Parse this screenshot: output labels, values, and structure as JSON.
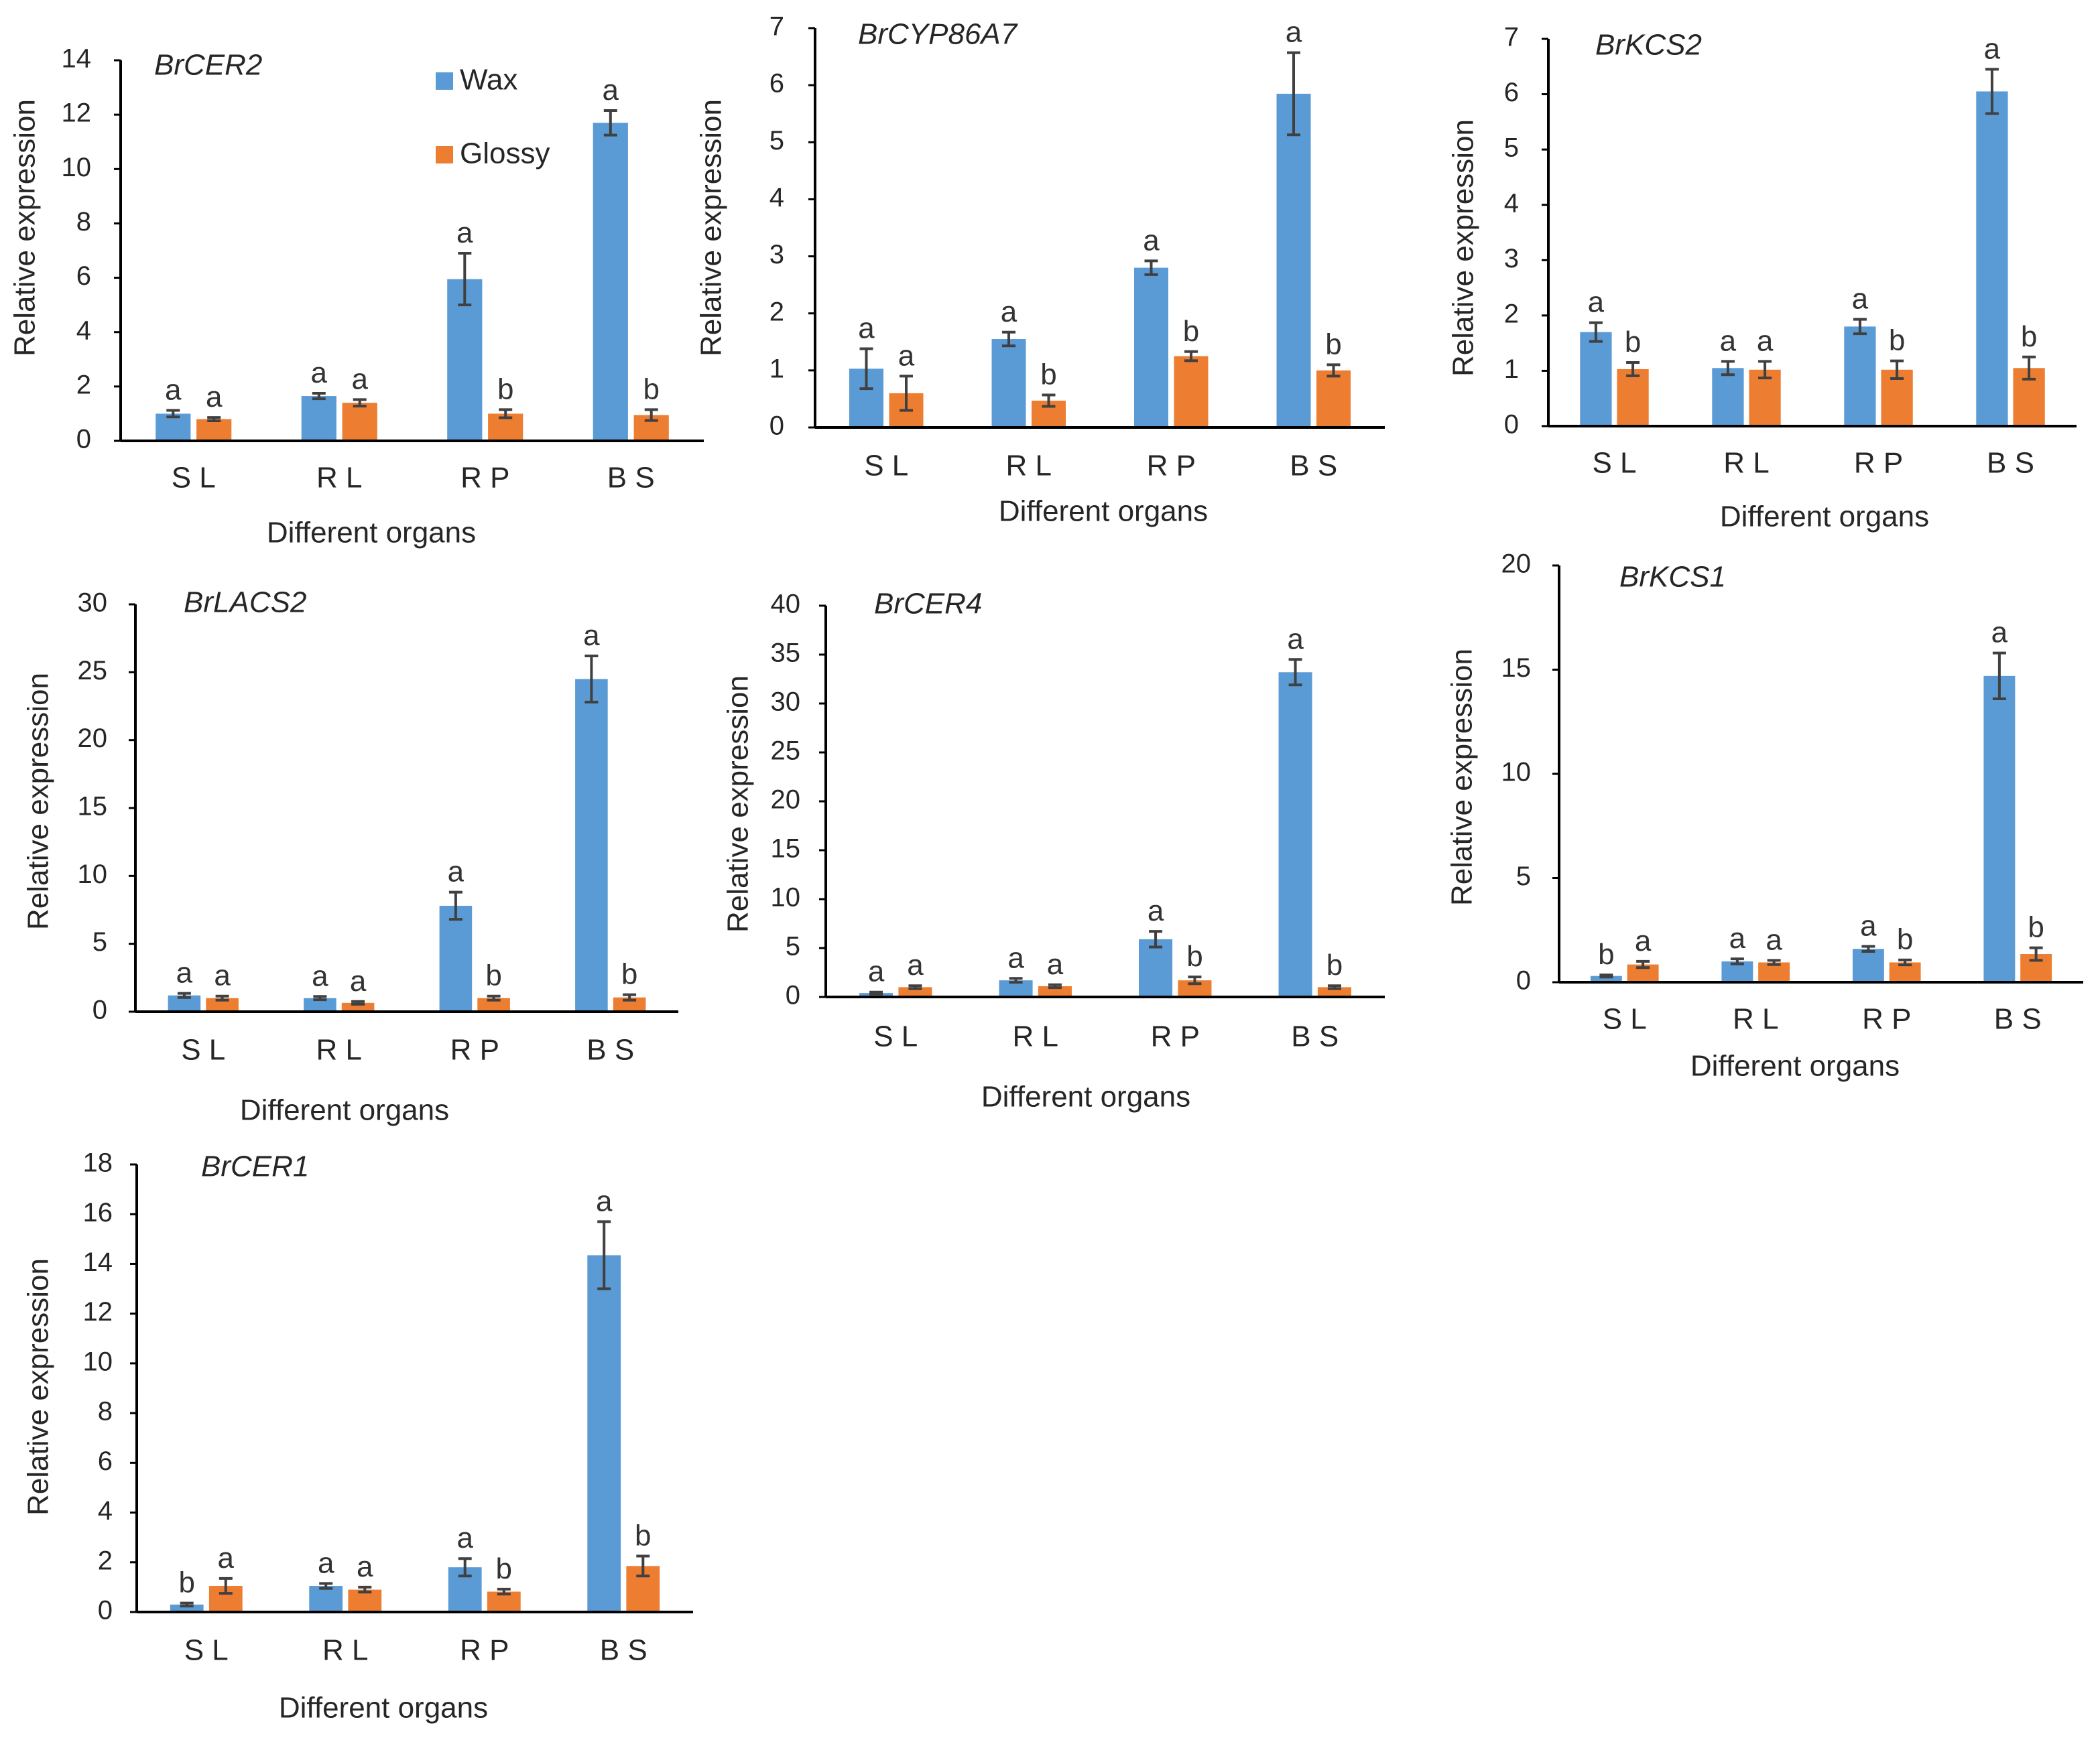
{
  "chart_data": [
    {
      "type": "bar",
      "title": "BrCER2",
      "ylabel": "Relative expression",
      "xlabel": "Different organs",
      "categories": [
        "S L",
        "R L",
        "R P",
        "B S"
      ],
      "ylim": [
        0,
        14
      ],
      "yticks": [
        0,
        2,
        4,
        6,
        8,
        10,
        12,
        14
      ],
      "show_legend": true,
      "series": [
        {
          "name": "Wax",
          "color": "#5B9BD5",
          "values": [
            1.0,
            1.65,
            5.95,
            11.7
          ],
          "errors": [
            0.12,
            0.1,
            0.95,
            0.45
          ],
          "letters": [
            "a",
            "a",
            "a",
            "a"
          ]
        },
        {
          "name": "Glossy",
          "color": "#ED7D31",
          "values": [
            0.8,
            1.4,
            1.0,
            0.95
          ],
          "errors": [
            0.06,
            0.12,
            0.15,
            0.2
          ],
          "letters": [
            "a",
            "a",
            "b",
            "b"
          ]
        }
      ]
    },
    {
      "type": "bar",
      "title": "BrCYP86A7",
      "ylabel": "Relative expression",
      "xlabel": "Different organs",
      "categories": [
        "S L",
        "R L",
        "R P",
        "B S"
      ],
      "ylim": [
        0,
        7
      ],
      "yticks": [
        0,
        1,
        2,
        3,
        4,
        5,
        6,
        7
      ],
      "show_legend": false,
      "series": [
        {
          "name": "Wax",
          "color": "#5B9BD5",
          "values": [
            1.03,
            1.55,
            2.8,
            5.85
          ],
          "errors": [
            0.35,
            0.12,
            0.12,
            0.72
          ],
          "letters": [
            "a",
            "a",
            "a",
            "a"
          ]
        },
        {
          "name": "Glossy",
          "color": "#ED7D31",
          "values": [
            0.6,
            0.47,
            1.25,
            1.0
          ],
          "errors": [
            0.3,
            0.1,
            0.08,
            0.1
          ],
          "letters": [
            "a",
            "b",
            "b",
            "b"
          ]
        }
      ]
    },
    {
      "type": "bar",
      "title": "BrKCS2",
      "ylabel": "Relative expression",
      "xlabel": "Different organs",
      "categories": [
        "S L",
        "R L",
        "R P",
        "B S"
      ],
      "ylim": [
        0,
        7
      ],
      "yticks": [
        0,
        1,
        2,
        3,
        4,
        5,
        6,
        7
      ],
      "show_legend": false,
      "series": [
        {
          "name": "Wax",
          "color": "#5B9BD5",
          "values": [
            1.7,
            1.05,
            1.8,
            6.05
          ],
          "errors": [
            0.17,
            0.12,
            0.13,
            0.4
          ],
          "letters": [
            "a",
            "a",
            "a",
            "a"
          ]
        },
        {
          "name": "Glossy",
          "color": "#ED7D31",
          "values": [
            1.03,
            1.02,
            1.02,
            1.05
          ],
          "errors": [
            0.12,
            0.15,
            0.16,
            0.2
          ],
          "letters": [
            "b",
            "a",
            "b",
            "b"
          ]
        }
      ]
    },
    {
      "type": "bar",
      "title": "BrLACS2",
      "ylabel": "Relative expression",
      "xlabel": "Different organs",
      "categories": [
        "S L",
        "R L",
        "R P",
        "B S"
      ],
      "ylim": [
        0,
        30
      ],
      "yticks": [
        0,
        5,
        10,
        15,
        20,
        25,
        30
      ],
      "show_legend": false,
      "series": [
        {
          "name": "Wax",
          "color": "#5B9BD5",
          "values": [
            1.2,
            1.0,
            7.8,
            24.5
          ],
          "errors": [
            0.15,
            0.12,
            1.0,
            1.7
          ],
          "letters": [
            "a",
            "a",
            "a",
            "a"
          ]
        },
        {
          "name": "Glossy",
          "color": "#ED7D31",
          "values": [
            1.0,
            0.65,
            1.0,
            1.05
          ],
          "errors": [
            0.15,
            0.1,
            0.15,
            0.2
          ],
          "letters": [
            "a",
            "a",
            "b",
            "b"
          ]
        }
      ]
    },
    {
      "type": "bar",
      "title": "BrCER4",
      "ylabel": "Relative expression",
      "xlabel": "Different organs",
      "categories": [
        "S L",
        "R L",
        "R P",
        "B S"
      ],
      "ylim": [
        0,
        40
      ],
      "yticks": [
        0,
        5,
        10,
        15,
        20,
        25,
        30,
        35,
        40
      ],
      "show_legend": false,
      "series": [
        {
          "name": "Wax",
          "color": "#5B9BD5",
          "values": [
            0.4,
            1.7,
            5.9,
            33.2
          ],
          "errors": [
            0.1,
            0.2,
            0.8,
            1.3
          ],
          "letters": [
            "a",
            "a",
            "a",
            "a"
          ]
        },
        {
          "name": "Glossy",
          "color": "#ED7D31",
          "values": [
            1.0,
            1.1,
            1.7,
            1.0
          ],
          "errors": [
            0.15,
            0.15,
            0.35,
            0.15
          ],
          "letters": [
            "a",
            "a",
            "b",
            "b"
          ]
        }
      ]
    },
    {
      "type": "bar",
      "title": "BrKCS1",
      "ylabel": "Relative expression",
      "xlabel": "Different organs",
      "categories": [
        "S L",
        "R L",
        "R P",
        "B S"
      ],
      "ylim": [
        0,
        20
      ],
      "yticks": [
        0,
        5,
        10,
        15,
        20
      ],
      "show_legend": false,
      "series": [
        {
          "name": "Wax",
          "color": "#5B9BD5",
          "values": [
            0.3,
            1.0,
            1.6,
            14.7
          ],
          "errors": [
            0.05,
            0.12,
            0.12,
            1.1
          ],
          "letters": [
            "b",
            "a",
            "a",
            "a"
          ]
        },
        {
          "name": "Glossy",
          "color": "#ED7D31",
          "values": [
            0.85,
            0.95,
            0.95,
            1.35
          ],
          "errors": [
            0.15,
            0.1,
            0.12,
            0.3
          ],
          "letters": [
            "a",
            "a",
            "b",
            "b"
          ]
        }
      ]
    },
    {
      "type": "bar",
      "title": "BrCER1",
      "ylabel": "Relative expression",
      "xlabel": "Different organs",
      "categories": [
        "S L",
        "R L",
        "R P",
        "B S"
      ],
      "ylim": [
        0,
        18
      ],
      "yticks": [
        0,
        2,
        4,
        6,
        8,
        10,
        12,
        14,
        16,
        18
      ],
      "show_legend": false,
      "series": [
        {
          "name": "Wax",
          "color": "#5B9BD5",
          "values": [
            0.3,
            1.05,
            1.8,
            14.35
          ],
          "errors": [
            0.06,
            0.1,
            0.35,
            1.35
          ],
          "letters": [
            "b",
            "a",
            "a",
            "a"
          ]
        },
        {
          "name": "Glossy",
          "color": "#ED7D31",
          "values": [
            1.05,
            0.9,
            0.82,
            1.85
          ],
          "errors": [
            0.3,
            0.1,
            0.1,
            0.4
          ],
          "letters": [
            "a",
            "a",
            "b",
            "b"
          ]
        }
      ]
    }
  ]
}
